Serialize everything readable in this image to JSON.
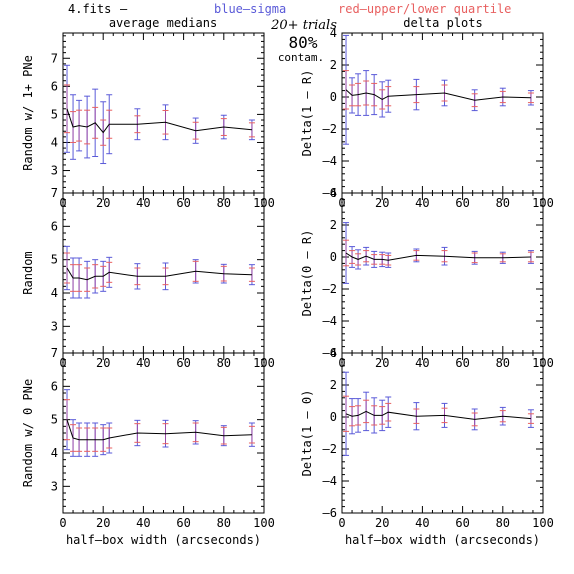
{
  "header": {
    "file_label": "4.fits",
    "dash": "–",
    "blue_label": "blue–sigma",
    "red_label": "red–upper/lower quartile",
    "trials": "20+ trials",
    "contam_pct": "80%",
    "contam_word": "contam.",
    "left_col_title": "average medians",
    "right_col_title": "delta plots"
  },
  "colors": {
    "blue": "#5a5ad8",
    "red": "#e86060",
    "magenta": "#9a4aa8",
    "line": "#000000"
  },
  "chart_data": [
    {
      "type": "line",
      "ylabel": "Random w/ 1+ PNe",
      "xlabel": "",
      "xlim": [
        0,
        100
      ],
      "ylim": [
        2.2,
        7.9
      ],
      "x": [
        2,
        5,
        8,
        12,
        16,
        20,
        23,
        37,
        51,
        66,
        80,
        94
      ],
      "y": [
        5.2,
        4.55,
        4.6,
        4.55,
        4.7,
        4.35,
        4.65,
        4.65,
        4.72,
        4.42,
        4.55,
        4.45
      ],
      "blue_err": [
        1.55,
        1.15,
        0.9,
        1.1,
        1.2,
        1.1,
        1.05,
        0.55,
        0.62,
        0.45,
        0.42,
        0.35
      ],
      "red_err": [
        0.85,
        0.55,
        0.55,
        0.6,
        0.55,
        0.45,
        0.5,
        0.3,
        0.42,
        0.3,
        0.3,
        0.25
      ],
      "xticks": [
        0,
        20,
        40,
        60,
        80,
        100
      ],
      "yticks": [
        3,
        4,
        5,
        6,
        7
      ]
    },
    {
      "type": "line",
      "ylabel": "Random",
      "xlabel": "",
      "xlim": [
        0,
        100
      ],
      "ylim": [
        2.2,
        7.0
      ],
      "x": [
        2,
        5,
        8,
        12,
        16,
        20,
        23,
        37,
        51,
        66,
        80,
        94
      ],
      "y": [
        4.75,
        4.45,
        4.45,
        4.4,
        4.5,
        4.5,
        4.62,
        4.5,
        4.5,
        4.65,
        4.58,
        4.55
      ],
      "blue_err": [
        0.65,
        0.6,
        0.6,
        0.55,
        0.5,
        0.45,
        0.45,
        0.38,
        0.4,
        0.35,
        0.28,
        0.3
      ],
      "red_err": [
        0.45,
        0.4,
        0.4,
        0.35,
        0.35,
        0.3,
        0.3,
        0.25,
        0.25,
        0.3,
        0.22,
        0.2
      ],
      "xticks": [
        0,
        20,
        40,
        60,
        80,
        100
      ],
      "yticks": [
        3,
        4,
        5,
        6,
        7
      ]
    },
    {
      "type": "line",
      "ylabel": "Random w/ 0 PNe",
      "xlabel": "half–box width (arcseconds)",
      "xlim": [
        0,
        100
      ],
      "ylim": [
        2.2,
        7.0
      ],
      "x": [
        2,
        5,
        8,
        12,
        16,
        20,
        23,
        37,
        51,
        66,
        80,
        94
      ],
      "y": [
        5.0,
        4.45,
        4.4,
        4.4,
        4.4,
        4.4,
        4.45,
        4.6,
        4.58,
        4.62,
        4.52,
        4.55
      ],
      "blue_err": [
        0.9,
        0.55,
        0.5,
        0.5,
        0.5,
        0.45,
        0.45,
        0.38,
        0.4,
        0.35,
        0.3,
        0.35
      ],
      "red_err": [
        0.6,
        0.4,
        0.35,
        0.35,
        0.35,
        0.35,
        0.3,
        0.28,
        0.3,
        0.28,
        0.25,
        0.25
      ],
      "xticks": [
        0,
        20,
        40,
        60,
        80,
        100
      ],
      "yticks": [
        3,
        4,
        5,
        6,
        7
      ]
    },
    {
      "type": "line",
      "ylabel": "Delta(1 – R)",
      "xlabel": "",
      "xlim": [
        0,
        100
      ],
      "ylim": [
        -6,
        4
      ],
      "x": [
        2,
        5,
        8,
        12,
        16,
        20,
        23,
        37,
        51,
        66,
        80,
        94
      ],
      "y": [
        0.45,
        0.1,
        0.15,
        0.25,
        0.15,
        -0.15,
        0.05,
        0.15,
        0.25,
        -0.2,
        0.0,
        -0.05
      ],
      "blue_err": [
        3.4,
        1.1,
        1.3,
        1.4,
        1.25,
        1.1,
        1.0,
        0.95,
        0.8,
        0.65,
        0.55,
        0.45
      ],
      "red_err": [
        1.2,
        0.65,
        0.7,
        0.75,
        0.7,
        0.6,
        0.6,
        0.5,
        0.5,
        0.4,
        0.35,
        0.3
      ],
      "xticks": [
        0,
        20,
        40,
        60,
        80,
        100
      ],
      "yticks": [
        -6,
        -4,
        -2,
        0,
        2,
        4
      ]
    },
    {
      "type": "line",
      "ylabel": "Delta(0 – R)",
      "xlabel": "",
      "xlim": [
        0,
        100
      ],
      "ylim": [
        -6,
        4
      ],
      "x": [
        2,
        5,
        8,
        12,
        16,
        20,
        23,
        37,
        51,
        66,
        80,
        94
      ],
      "y": [
        0.25,
        0.0,
        -0.15,
        0.05,
        -0.15,
        -0.15,
        -0.2,
        0.1,
        0.05,
        -0.05,
        -0.05,
        0.0
      ],
      "blue_err": [
        1.9,
        0.65,
        0.6,
        0.55,
        0.5,
        0.45,
        0.45,
        0.4,
        0.55,
        0.4,
        0.35,
        0.4
      ],
      "red_err": [
        0.8,
        0.4,
        0.35,
        0.35,
        0.3,
        0.3,
        0.3,
        0.3,
        0.35,
        0.3,
        0.25,
        0.3
      ],
      "xticks": [
        0,
        20,
        40,
        60,
        80,
        100
      ],
      "yticks": [
        -6,
        -4,
        -2,
        0,
        2,
        4
      ]
    },
    {
      "type": "line",
      "ylabel": "Delta(1 – 0)",
      "xlabel": "half–box width (arcseconds)",
      "xlim": [
        0,
        100
      ],
      "ylim": [
        -6,
        4
      ],
      "x": [
        2,
        5,
        8,
        12,
        16,
        20,
        23,
        37,
        51,
        66,
        80,
        94
      ],
      "y": [
        0.2,
        0.05,
        0.1,
        0.35,
        0.1,
        0.1,
        0.3,
        0.05,
        0.1,
        -0.15,
        0.05,
        -0.1
      ],
      "blue_err": [
        2.6,
        1.1,
        1.05,
        1.2,
        1.1,
        0.95,
        0.95,
        0.85,
        0.75,
        0.65,
        0.55,
        0.55
      ],
      "red_err": [
        1.1,
        0.6,
        0.6,
        0.7,
        0.6,
        0.55,
        0.55,
        0.45,
        0.45,
        0.4,
        0.35,
        0.3
      ],
      "xticks": [
        0,
        20,
        40,
        60,
        80,
        100
      ],
      "yticks": [
        -6,
        -4,
        -2,
        0,
        2,
        4
      ]
    }
  ]
}
